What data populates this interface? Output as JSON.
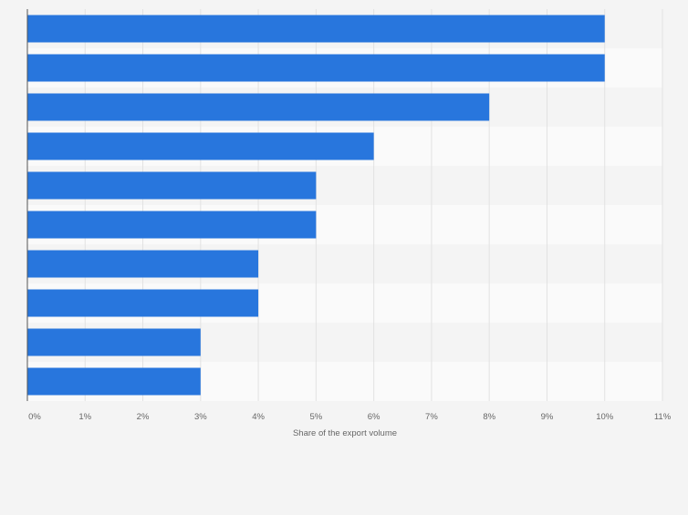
{
  "chart_data": {
    "type": "bar",
    "orientation": "horizontal",
    "categories": [
      "",
      "",
      "",
      "",
      "",
      "",
      "",
      "",
      "",
      ""
    ],
    "values": [
      10,
      10,
      8,
      6,
      5,
      5,
      4,
      4,
      3,
      3
    ],
    "xlim": [
      0,
      11
    ],
    "x_tick_labels": [
      "0%",
      "1%",
      "2%",
      "3%",
      "4%",
      "5%",
      "6%",
      "7%",
      "8%",
      "9%",
      "10%",
      "11%"
    ],
    "xlabel": "Share of the export volume",
    "ylabel": "",
    "title": "",
    "grid": true,
    "bar_color": "#2876dd",
    "band_colors": [
      "#f4f4f4",
      "#fafafa"
    ],
    "plot_background": "#fafafa",
    "page_background": "#f4f4f4",
    "axis_text_color": "#666666",
    "grid_color": "#e2e2e2"
  }
}
